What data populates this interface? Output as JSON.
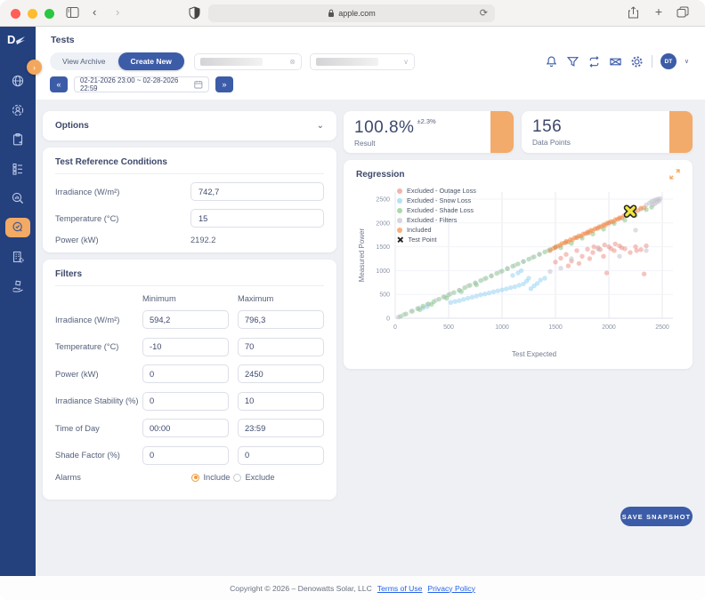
{
  "browser": {
    "url": "apple.com",
    "traffic_colors": {
      "close": "#ff5f57",
      "minimize": "#febc2e",
      "zoom": "#28c840"
    }
  },
  "header": {
    "page_title": "Tests",
    "view_archive_label": "View Archive",
    "create_new_label": "Create New",
    "date_range": "02-21-2026 23:00 ~ 02-28-2026 22:59",
    "prev_label": "«",
    "next_label": "»",
    "avatar_initials": "DT"
  },
  "options_panel": {
    "title": "Options"
  },
  "reference": {
    "title": "Test Reference Conditions",
    "rows": [
      {
        "label": "Irradiance (W/m²)",
        "value": "742,7"
      },
      {
        "label": "Temperature (°C)",
        "value": "15"
      },
      {
        "label": "Power (kW)",
        "value": "2192.2"
      }
    ]
  },
  "filters": {
    "title": "Filters",
    "col_min": "Minimum",
    "col_max": "Maximum",
    "rows": [
      {
        "label": "Irradiance (W/m²)",
        "min": "594,2",
        "max": "796,3"
      },
      {
        "label": "Temperature (°C)",
        "min": "-10",
        "max": "70"
      },
      {
        "label": "Power (kW)",
        "min": "0",
        "max": "2450"
      },
      {
        "label": "Irradiance Stability (%)",
        "min": "0",
        "max": "10"
      },
      {
        "label": "Time of Day",
        "min": "00:00",
        "max": "23:59"
      },
      {
        "label": "Shade Factor (%)",
        "min": "0",
        "max": "0"
      }
    ],
    "alarms_label": "Alarms",
    "alarm_include": "Include",
    "alarm_exclude": "Exclude"
  },
  "stats": {
    "result_value": "100.8%",
    "result_delta": "±2.3%",
    "result_label": "Result",
    "datapoints_value": "156",
    "datapoints_label": "Data Points"
  },
  "regression": {
    "title": "Regression"
  },
  "chart_data": {
    "type": "scatter",
    "title": "Regression",
    "xlabel": "Test Expected",
    "ylabel": "Measured Power",
    "xlim": [
      0,
      2600
    ],
    "ylim": [
      0,
      2650
    ],
    "ticks": [
      0,
      500,
      1000,
      1500,
      2000,
      2500
    ],
    "grid": true,
    "legend_position": "top-left",
    "series": [
      {
        "name": "Excluded - Outage Loss",
        "color": "#ee8a80",
        "points": [
          [
            1500,
            1180
          ],
          [
            1550,
            1260
          ],
          [
            1600,
            1340
          ],
          [
            1650,
            1200
          ],
          [
            1700,
            1420
          ],
          [
            1750,
            1300
          ],
          [
            1800,
            1450
          ],
          [
            1850,
            1380
          ],
          [
            1900,
            1480
          ],
          [
            1950,
            1300
          ],
          [
            2000,
            1500
          ],
          [
            2050,
            1420
          ],
          [
            2100,
            1520
          ],
          [
            2150,
            1460
          ],
          [
            2200,
            1380
          ],
          [
            2250,
            1500
          ],
          [
            2300,
            1440
          ],
          [
            2350,
            1520
          ],
          [
            1980,
            950
          ],
          [
            2330,
            930
          ],
          [
            1620,
            1100
          ],
          [
            1720,
            1150
          ],
          [
            1820,
            1250
          ],
          [
            1920,
            1440
          ],
          [
            2020,
            1460
          ],
          [
            2120,
            1480
          ],
          [
            2060,
            1560
          ],
          [
            1960,
            1540
          ],
          [
            1860,
            1500
          ],
          [
            2260,
            1420
          ]
        ]
      },
      {
        "name": "Excluded - Snow Loss",
        "color": "#8fd0f2",
        "points": [
          [
            520,
            330
          ],
          [
            560,
            350
          ],
          [
            600,
            370
          ],
          [
            640,
            395
          ],
          [
            680,
            420
          ],
          [
            720,
            440
          ],
          [
            760,
            465
          ],
          [
            800,
            490
          ],
          [
            840,
            510
          ],
          [
            880,
            530
          ],
          [
            920,
            555
          ],
          [
            960,
            575
          ],
          [
            1000,
            595
          ],
          [
            1040,
            615
          ],
          [
            1080,
            640
          ],
          [
            1120,
            660
          ],
          [
            1160,
            690
          ],
          [
            1200,
            720
          ],
          [
            1230,
            780
          ],
          [
            1250,
            840
          ],
          [
            1270,
            620
          ],
          [
            1300,
            680
          ],
          [
            1330,
            730
          ],
          [
            1360,
            800
          ],
          [
            1400,
            840
          ],
          [
            1150,
            950
          ],
          [
            1180,
            1000
          ],
          [
            1100,
            900
          ],
          [
            260,
            210
          ],
          [
            300,
            240
          ]
        ]
      },
      {
        "name": "Excluded - Shade Loss",
        "color": "#7cc47f",
        "points": [
          [
            50,
            40
          ],
          [
            100,
            90
          ],
          [
            160,
            150
          ],
          [
            210,
            200
          ],
          [
            260,
            255
          ],
          [
            310,
            300
          ],
          [
            360,
            345
          ],
          [
            410,
            400
          ],
          [
            460,
            450
          ],
          [
            500,
            490
          ],
          [
            550,
            540
          ],
          [
            600,
            585
          ],
          [
            650,
            640
          ],
          [
            700,
            690
          ],
          [
            750,
            735
          ],
          [
            800,
            790
          ],
          [
            850,
            840
          ],
          [
            900,
            885
          ],
          [
            950,
            940
          ],
          [
            1000,
            990
          ],
          [
            1050,
            1040
          ],
          [
            1100,
            1090
          ],
          [
            1150,
            1140
          ],
          [
            1200,
            1190
          ],
          [
            1250,
            1240
          ],
          [
            1300,
            1290
          ],
          [
            1350,
            1340
          ],
          [
            1400,
            1390
          ],
          [
            1450,
            1440
          ],
          [
            1500,
            1490
          ],
          [
            230,
            180
          ],
          [
            340,
            290
          ],
          [
            480,
            420
          ],
          [
            620,
            560
          ],
          [
            760,
            700
          ],
          [
            1550,
            1480
          ],
          [
            1650,
            1570
          ],
          [
            1750,
            1680
          ],
          [
            1850,
            1770
          ],
          [
            1950,
            1870
          ],
          [
            2050,
            1990
          ],
          [
            2150,
            2060
          ],
          [
            2250,
            2160
          ],
          [
            2350,
            2280
          ],
          [
            2400,
            2330
          ]
        ]
      },
      {
        "name": "Excluded - Filters",
        "color": "#bdc0ca",
        "points": [
          [
            30,
            25
          ],
          [
            80,
            75
          ],
          [
            150,
            145
          ],
          [
            220,
            215
          ],
          [
            300,
            290
          ],
          [
            380,
            375
          ],
          [
            450,
            445
          ],
          [
            520,
            515
          ],
          [
            600,
            590
          ],
          [
            680,
            675
          ],
          [
            750,
            745
          ],
          [
            830,
            820
          ],
          [
            900,
            895
          ],
          [
            980,
            970
          ],
          [
            1050,
            1045
          ],
          [
            1120,
            1110
          ],
          [
            1200,
            1190
          ],
          [
            1280,
            1270
          ],
          [
            1350,
            1345
          ],
          [
            1430,
            1420
          ],
          [
            1500,
            1495
          ],
          [
            1600,
            1590
          ],
          [
            1700,
            1690
          ],
          [
            1800,
            1780
          ],
          [
            1900,
            1890
          ],
          [
            2000,
            1985
          ],
          [
            2100,
            2090
          ],
          [
            2200,
            2185
          ],
          [
            2300,
            2290
          ],
          [
            2350,
            2380
          ],
          [
            2380,
            2420
          ],
          [
            2400,
            2450
          ],
          [
            2420,
            2470
          ],
          [
            2440,
            2490
          ],
          [
            2450,
            2440
          ],
          [
            2460,
            2500
          ],
          [
            2470,
            2460
          ],
          [
            2480,
            2510
          ],
          [
            2430,
            2400
          ],
          [
            2410,
            2380
          ],
          [
            1650,
            1250
          ],
          [
            1900,
            1450
          ],
          [
            2100,
            1300
          ],
          [
            2250,
            1850
          ],
          [
            1550,
            1050
          ],
          [
            2350,
            1420
          ],
          [
            1450,
            980
          ]
        ]
      },
      {
        "name": "Included",
        "color": "#f2843b",
        "points": [
          [
            1450,
            1420
          ],
          [
            1480,
            1465
          ],
          [
            1500,
            1490
          ],
          [
            1520,
            1515
          ],
          [
            1545,
            1530
          ],
          [
            1560,
            1570
          ],
          [
            1585,
            1580
          ],
          [
            1600,
            1615
          ],
          [
            1620,
            1605
          ],
          [
            1640,
            1650
          ],
          [
            1660,
            1645
          ],
          [
            1680,
            1690
          ],
          [
            1700,
            1695
          ],
          [
            1720,
            1730
          ],
          [
            1740,
            1725
          ],
          [
            1760,
            1770
          ],
          [
            1780,
            1775
          ],
          [
            1800,
            1810
          ],
          [
            1815,
            1800
          ],
          [
            1830,
            1845
          ],
          [
            1850,
            1840
          ],
          [
            1870,
            1880
          ],
          [
            1890,
            1885
          ],
          [
            1910,
            1920
          ],
          [
            1930,
            1925
          ],
          [
            1950,
            1960
          ],
          [
            1965,
            1950
          ],
          [
            1980,
            1995
          ],
          [
            2000,
            2005
          ],
          [
            2020,
            2030
          ],
          [
            2040,
            2025
          ],
          [
            2060,
            2070
          ],
          [
            2080,
            2075
          ],
          [
            2100,
            2110
          ],
          [
            2120,
            2105
          ],
          [
            2140,
            2150
          ],
          [
            2160,
            2155
          ],
          [
            2180,
            2190
          ],
          [
            2210,
            2200
          ],
          [
            2240,
            2250
          ],
          [
            2270,
            2260
          ],
          [
            2300,
            2310
          ],
          [
            2330,
            2320
          ]
        ]
      }
    ],
    "test_point": {
      "name": "Test Point",
      "color": "#f2e53e",
      "point": [
        2200,
        2245
      ]
    }
  },
  "save_snapshot_label": "SAVE SNAPSHOT",
  "footer": {
    "copyright": "Copyright © 2026 – Denowatts Solar, LLC",
    "terms": "Terms of Use",
    "privacy": "Privacy Policy"
  }
}
